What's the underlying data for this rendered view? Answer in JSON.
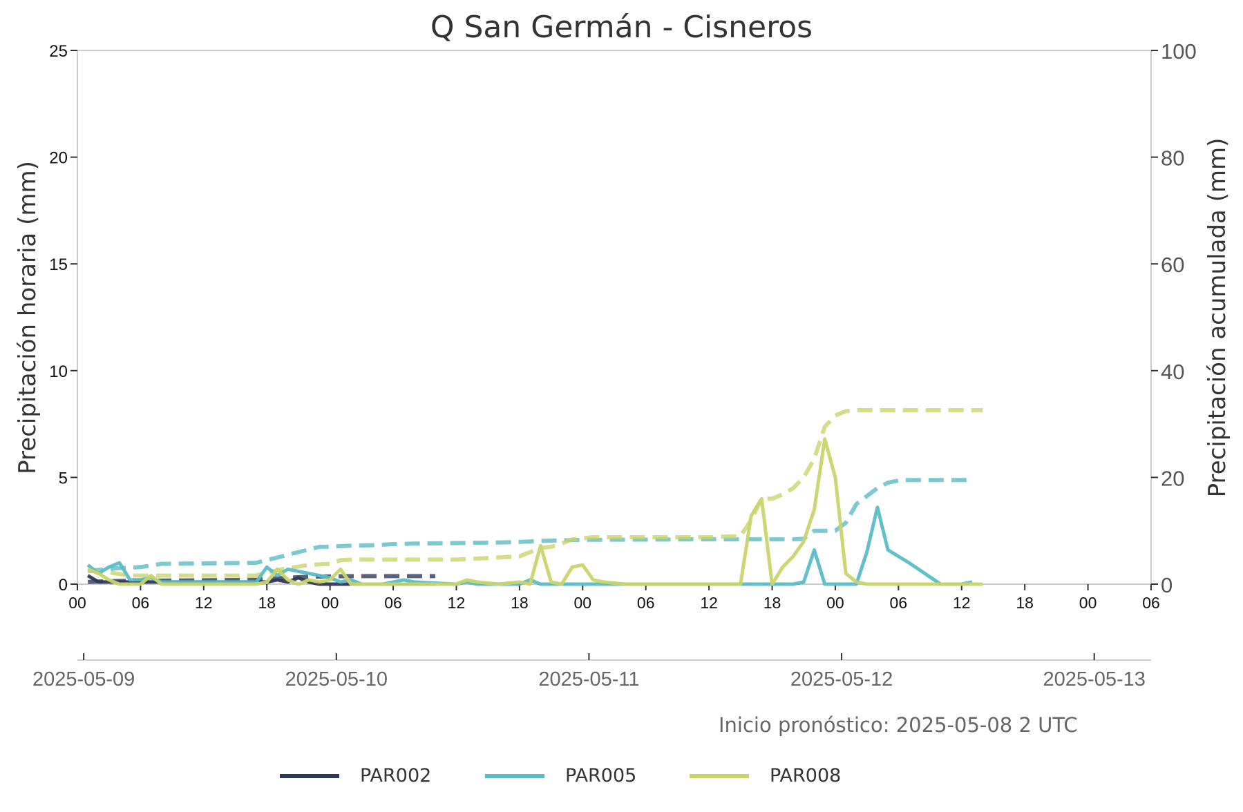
{
  "chart_data": {
    "type": "line",
    "title": "Q San Germán - Cisneros",
    "ylabel_left": "Precipitación horaria (mm)",
    "ylabel_right": "Precipitación acumulada (mm)",
    "ylim_left": [
      0,
      25
    ],
    "ylim_right": [
      0,
      100
    ],
    "yticks_left": [
      "0",
      "5",
      "10",
      "15",
      "20",
      "25"
    ],
    "yticks_right": [
      "0",
      "20",
      "40",
      "60",
      "80",
      "100"
    ],
    "xlim_hours": [
      0,
      102
    ],
    "hour_ticks": [
      "00",
      "06",
      "12",
      "18",
      "00",
      "06",
      "12",
      "18",
      "00",
      "06",
      "12",
      "18",
      "00",
      "06",
      "12",
      "18",
      "00",
      "06"
    ],
    "date_ticks": [
      "2025-05-09",
      "2025-05-10",
      "2025-05-11",
      "2025-05-12",
      "2025-05-13"
    ],
    "footnote": "Inicio pronóstico: 2025-05-08 2 UTC",
    "legend_position": "bottom",
    "grid": false,
    "series": [
      {
        "name": "PAR002",
        "color": "#30385a",
        "hourly": {
          "x": [
            1,
            2,
            3,
            5,
            10,
            15,
            17,
            18,
            19,
            20,
            21,
            22,
            23,
            24,
            26,
            27,
            30,
            34
          ],
          "y": [
            0.4,
            0.1,
            0.1,
            0.1,
            0.1,
            0.1,
            0.1,
            0.1,
            0.2,
            0.1,
            0.3,
            0.1,
            0.0,
            0.0,
            0.0,
            0.0,
            0.0,
            0.0
          ]
        },
        "accumulated": {
          "x": [
            1,
            2,
            4,
            10,
            17,
            18,
            20,
            22,
            26,
            30,
            34
          ],
          "y": [
            0.4,
            0.5,
            0.6,
            0.7,
            0.8,
            1.0,
            1.2,
            1.4,
            1.5,
            1.5,
            1.5
          ]
        }
      },
      {
        "name": "PAR005",
        "color": "#5bbcc6",
        "hourly": {
          "x": [
            1,
            2,
            3,
            4,
            5,
            6,
            7,
            8,
            17,
            18,
            19,
            20,
            21,
            22,
            23,
            24,
            25,
            26,
            27,
            28,
            29,
            30,
            31,
            32,
            36,
            37,
            38,
            40,
            42,
            43,
            44,
            48,
            60,
            66,
            67,
            68,
            69,
            70,
            71,
            72,
            73,
            74,
            75,
            76,
            77,
            78,
            79,
            82,
            84,
            85
          ],
          "y": [
            0.9,
            0.5,
            0.8,
            1.0,
            0.2,
            0.2,
            0.3,
            0.1,
            0.1,
            0.8,
            0.4,
            0.7,
            0.6,
            0.5,
            0.4,
            0.3,
            0.1,
            0.2,
            0.0,
            0.0,
            0.0,
            0.1,
            0.2,
            0.1,
            0.0,
            0.1,
            0.0,
            0.0,
            0.0,
            0.2,
            0.0,
            0.0,
            0.0,
            0.0,
            0.0,
            0.0,
            0.1,
            1.6,
            0.0,
            0.0,
            0.0,
            0.0,
            1.5,
            3.6,
            1.6,
            1.3,
            1.0,
            0.0,
            0.0,
            0.1
          ]
        },
        "accumulated": {
          "x": [
            1,
            4,
            6,
            8,
            17,
            18,
            19,
            20,
            21,
            22,
            23,
            24,
            26,
            28,
            30,
            32,
            36,
            40,
            42,
            43,
            44,
            48,
            60,
            66,
            68,
            69,
            70,
            71,
            72,
            73,
            74,
            75,
            76,
            77,
            78,
            79,
            80,
            82,
            85
          ],
          "y": [
            2.5,
            3.0,
            3.2,
            3.8,
            4.0,
            4.5,
            5.0,
            5.5,
            6.0,
            6.5,
            7.0,
            7.0,
            7.2,
            7.3,
            7.5,
            7.6,
            7.7,
            7.8,
            7.9,
            8.0,
            8.1,
            8.3,
            8.4,
            8.4,
            8.4,
            8.5,
            10.0,
            10.0,
            10.0,
            11.5,
            15.0,
            16.5,
            18.0,
            19.0,
            19.4,
            19.5,
            19.5,
            19.5,
            19.5
          ]
        }
      },
      {
        "name": "PAR008",
        "color": "#c9d46c",
        "hourly": {
          "x": [
            1,
            2,
            3,
            4,
            6,
            7,
            8,
            10,
            12,
            17,
            18,
            19,
            20,
            21,
            22,
            23,
            24,
            25,
            26,
            27,
            30,
            32,
            36,
            37,
            38,
            40,
            42,
            43,
            44,
            45,
            46,
            47,
            48,
            49,
            50,
            52,
            60,
            62,
            63,
            64,
            65,
            66,
            67,
            68,
            69,
            70,
            71,
            72,
            73,
            74,
            75,
            76,
            77,
            78,
            80,
            82,
            84,
            86
          ],
          "y": [
            0.7,
            0.5,
            0.2,
            0.0,
            0.0,
            0.4,
            0.0,
            0.0,
            0.0,
            0.0,
            0.1,
            0.7,
            0.2,
            0.0,
            0.2,
            0.1,
            0.2,
            0.7,
            0.0,
            0.0,
            0.0,
            0.0,
            0.0,
            0.2,
            0.1,
            0.0,
            0.1,
            0.0,
            1.8,
            0.1,
            0.0,
            0.8,
            0.9,
            0.2,
            0.1,
            0.0,
            0.0,
            0.0,
            0.0,
            3.2,
            4.0,
            0.0,
            0.8,
            1.3,
            2.0,
            3.5,
            6.8,
            5.0,
            0.5,
            0.1,
            0.0,
            0.0,
            0.0,
            0.0,
            0.0,
            0.0,
            0.0,
            0.0
          ]
        },
        "accumulated": {
          "x": [
            1,
            3,
            5,
            10,
            17,
            18,
            20,
            22,
            24,
            25,
            26,
            30,
            36,
            40,
            42,
            44,
            45,
            46,
            47,
            48,
            49,
            50,
            52,
            60,
            63,
            64,
            65,
            66,
            67,
            68,
            69,
            70,
            71,
            72,
            73,
            74,
            76,
            80,
            86
          ],
          "y": [
            2.5,
            2.2,
            1.6,
            1.6,
            1.6,
            2.2,
            3.0,
            3.6,
            3.8,
            4.5,
            4.6,
            4.6,
            4.6,
            5.0,
            5.2,
            6.8,
            7.0,
            7.6,
            8.4,
            8.6,
            8.8,
            8.8,
            8.8,
            8.8,
            9.0,
            12.0,
            16.0,
            16.0,
            16.8,
            18.0,
            20.0,
            23.5,
            29.5,
            31.6,
            32.4,
            32.6,
            32.6,
            32.6,
            32.6
          ]
        }
      }
    ]
  }
}
